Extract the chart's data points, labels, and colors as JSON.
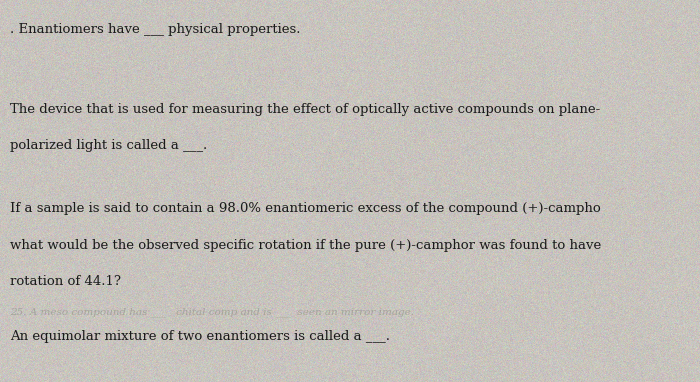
{
  "background_color": "#c8c4bc",
  "text_color": "#1a1a1a",
  "line1": ". Enantiomers have ___ physical properties.",
  "line2a": "The device that is used for measuring the effect of optically active compounds on plane-",
  "line2b": "polarized light is called a ___.",
  "line3a": "If a sample is said to contain a 98.0% enantiomeric excess of the compound (+)-campho",
  "line3b": "what would be the observed specific rotation if the pure (+)-camphor was found to have",
  "line3c": "rotation of 44.1?",
  "line4_faint": "25. A meso compound has ___   chital comp and is ___  seen an mirror image.",
  "line5": "An equimolar mixture of two enantiomers is called a ___.",
  "bg_light": "#cbc7bf",
  "bg_dark": "#b8b4ac",
  "faint_color": "#888880"
}
